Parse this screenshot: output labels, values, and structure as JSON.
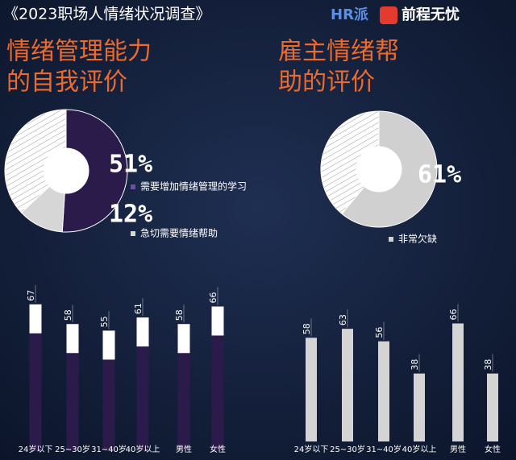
{
  "header": {
    "title": "《2023职场人情绪状况调查》",
    "logos": [
      "HR派",
      "前程无忧"
    ]
  },
  "chart_data": [
    {
      "type": "pie",
      "title": [
        "情绪管理能力",
        "的自我评价"
      ],
      "categories": [
        "需要增加情绪管理的学习",
        "急切需要情绪帮助",
        null
      ],
      "values": [
        51,
        12,
        37
      ],
      "value_labels": [
        "51%",
        "12%",
        null
      ],
      "colors": [
        "#2b1b4a",
        "#d6d6d6",
        "#ffffff"
      ],
      "hatched": [
        false,
        false,
        true
      ]
    },
    {
      "type": "bar",
      "categories": [
        "24岁以下",
        "25~30岁",
        "31~40岁",
        "40岁以上",
        "男性",
        "女性"
      ],
      "values": [
        67,
        58,
        55,
        61,
        58,
        66
      ],
      "color": "#2b1b4a",
      "cap_color": "#ffffff"
    },
    {
      "type": "pie",
      "title": [
        "雇主情绪帮",
        "助的评价"
      ],
      "categories": [
        "非常欠缺",
        null
      ],
      "values": [
        61,
        39
      ],
      "value_labels": [
        "61%",
        null
      ],
      "colors": [
        "#d0d0d0",
        "#ffffff"
      ],
      "hatched": [
        false,
        true
      ]
    },
    {
      "type": "bar",
      "categories": [
        "24岁以下",
        "25~30岁",
        "31~40岁",
        "40岁以上",
        "男性",
        "女性"
      ],
      "values": [
        58,
        63,
        56,
        38,
        66,
        38
      ],
      "color": "#d4d4d4"
    }
  ]
}
